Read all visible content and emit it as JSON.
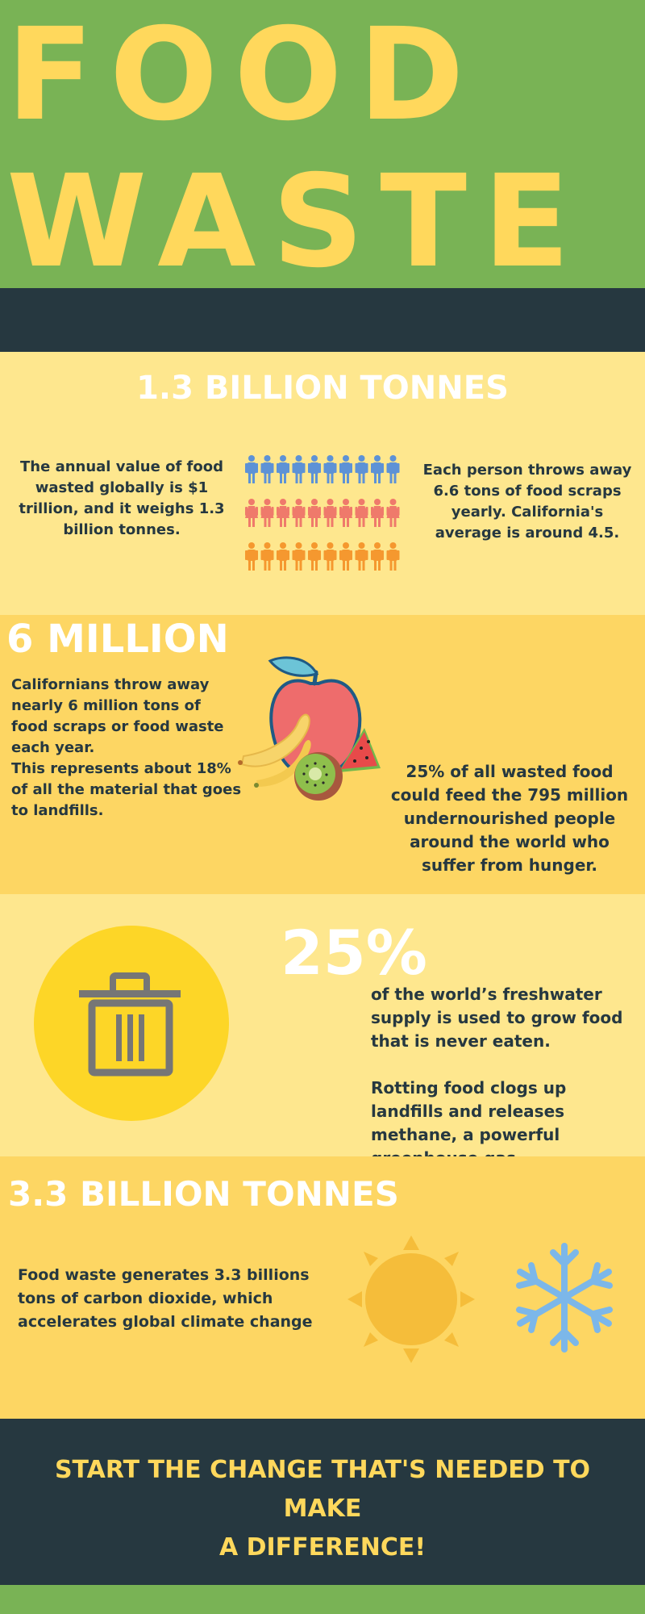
{
  "hero": {
    "line1": "FOOD",
    "line2": "WASTE"
  },
  "section1": {
    "heading": "1.3 BILLION TONNES",
    "left_text": "The annual value of food wasted globally is $1 trillion, and it weighs 1.3 billion tonnes.",
    "right_text": "Each person throws away 6.6 tons of food scraps yearly. California's average is around 4.5.",
    "people_colors": [
      "#5d92d6",
      "#ef7a6b",
      "#f5982f"
    ]
  },
  "section2": {
    "heading": "6 MILLION",
    "left_text_1": "Californians throw away nearly 6 million tons of food scraps or food waste each year.",
    "left_text_2": "This represents about 18% of all the material that goes to landfills.",
    "right_text": "25% of all wasted food could feed the 795 million undernourished people around the world who suffer from hunger."
  },
  "section3": {
    "heading": "25%",
    "text_1": "of the world’s freshwater supply is used to grow food that is never eaten.",
    "text_2": "Rotting food clogs up landfills and releases methane, a powerful greenhouse gas."
  },
  "section4": {
    "heading": "3.3 BILLION TONNES",
    "text": "Food waste generates 3.3 billions tons of carbon dioxide, which accelerates global climate change"
  },
  "cta": {
    "line1": "START THE CHANGE THAT'S NEEDED TO MAKE",
    "line2": "A DIFFERENCE!"
  },
  "colors": {
    "green": "#79b355",
    "yellow_title": "#ffd85c",
    "dark": "#263840",
    "light_yellow": "#fee78e",
    "mid_yellow": "#fdd663"
  }
}
